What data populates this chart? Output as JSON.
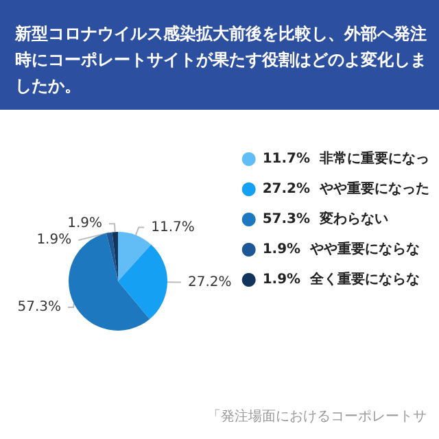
{
  "chart_data": {
    "type": "pie",
    "title": "新型コロナウイルス感染拡大前後を比較し、外部へ発注時にコーポレートサイトが果たす役割はどのよ変化しましたか。",
    "categories": [
      "非常に重要になっ",
      "やや重要になった",
      "変わらない",
      "やや重要にならな",
      "全く重要にならな"
    ],
    "values": [
      11.7,
      27.2,
      57.3,
      1.9,
      1.9
    ],
    "colors": [
      "#62bdf6",
      "#16a0f3",
      "#1d78bf",
      "#1e5796",
      "#12345c"
    ],
    "value_labels": [
      "11.7%",
      "27.2%",
      "57.3%",
      "1.9%",
      "1.9%"
    ],
    "legend": "right",
    "annotations": [
      "「発注場面におけるコーポレートサ"
    ]
  }
}
